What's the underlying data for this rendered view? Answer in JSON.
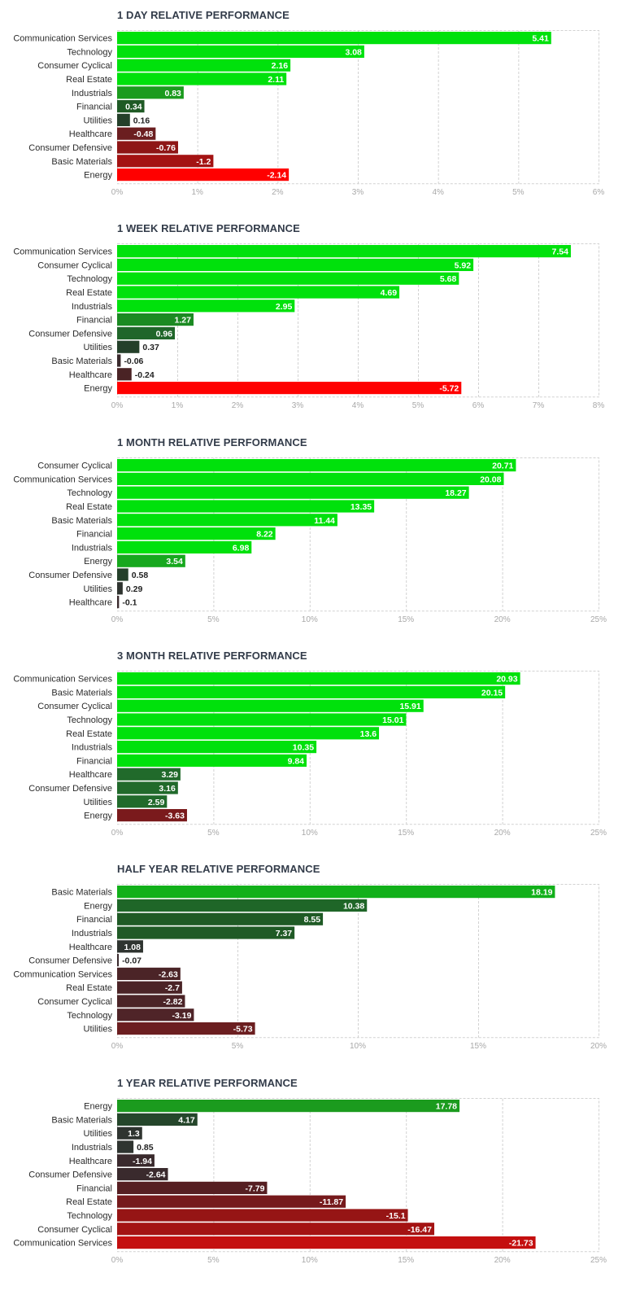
{
  "chart_data": [
    {
      "type": "bar",
      "title": "1 DAY RELATIVE PERFORMANCE",
      "categories": [
        "Communication Services",
        "Technology",
        "Consumer Cyclical",
        "Real Estate",
        "Industrials",
        "Financial",
        "Utilities",
        "Healthcare",
        "Consumer Defensive",
        "Basic Materials",
        "Energy"
      ],
      "values": [
        5.41,
        3.08,
        2.16,
        2.11,
        0.83,
        0.34,
        0.16,
        -0.48,
        -0.76,
        -1.2,
        -2.14
      ],
      "value_labels": [
        "5.41",
        "3.08",
        "2.16",
        "2.11",
        "0.83",
        "0.34",
        "0.16",
        "-0.48",
        "-0.76",
        "-1.2",
        "-2.14"
      ],
      "xlim": [
        0,
        6
      ],
      "xticks": [
        "0%",
        "1%",
        "2%",
        "3%",
        "4%",
        "5%",
        "6%"
      ],
      "grid": true,
      "bar_colors": [
        "#00e10c",
        "#00e10c",
        "#00e10c",
        "#00e10c",
        "#1b9b1e",
        "#1f5a25",
        "#24402a",
        "#6b1e20",
        "#8e1616",
        "#a41313",
        "#ff0000"
      ]
    },
    {
      "type": "bar",
      "title": "1 WEEK RELATIVE PERFORMANCE",
      "categories": [
        "Communication Services",
        "Consumer Cyclical",
        "Technology",
        "Real Estate",
        "Industrials",
        "Financial",
        "Consumer Defensive",
        "Utilities",
        "Basic Materials",
        "Healthcare",
        "Energy"
      ],
      "values": [
        7.54,
        5.92,
        5.68,
        4.69,
        2.95,
        1.27,
        0.96,
        0.37,
        -0.06,
        -0.24,
        -5.72
      ],
      "value_labels": [
        "7.54",
        "5.92",
        "5.68",
        "4.69",
        "2.95",
        "1.27",
        "0.96",
        "0.37",
        "-0.06",
        "-0.24",
        "-5.72"
      ],
      "xlim": [
        0,
        8
      ],
      "xticks": [
        "0%",
        "1%",
        "2%",
        "3%",
        "4%",
        "5%",
        "6%",
        "7%",
        "8%"
      ],
      "grid": true,
      "bar_colors": [
        "#00e10c",
        "#00e10c",
        "#00e10c",
        "#00e10c",
        "#00e10c",
        "#1b8a22",
        "#20662a",
        "#24402a",
        "#3a2a2d",
        "#4a2325",
        "#ff0000"
      ]
    },
    {
      "type": "bar",
      "title": "1 MONTH RELATIVE PERFORMANCE",
      "categories": [
        "Consumer Cyclical",
        "Communication Services",
        "Technology",
        "Real Estate",
        "Basic Materials",
        "Financial",
        "Industrials",
        "Energy",
        "Consumer Defensive",
        "Utilities",
        "Healthcare"
      ],
      "values": [
        20.71,
        20.08,
        18.27,
        13.35,
        11.44,
        8.22,
        6.98,
        3.54,
        0.58,
        0.29,
        -0.1
      ],
      "value_labels": [
        "20.71",
        "20.08",
        "18.27",
        "13.35",
        "11.44",
        "8.22",
        "6.98",
        "3.54",
        "0.58",
        "0.29",
        "-0.1"
      ],
      "xlim": [
        0,
        25
      ],
      "xticks": [
        "0%",
        "5%",
        "10%",
        "15%",
        "20%",
        "25%"
      ],
      "grid": true,
      "bar_colors": [
        "#00e10c",
        "#00e10c",
        "#00e10c",
        "#00e10c",
        "#00e10c",
        "#00e10c",
        "#00e10c",
        "#17a81e",
        "#24402a",
        "#2f3430",
        "#3a2a2d"
      ]
    },
    {
      "type": "bar",
      "title": "3 MONTH RELATIVE PERFORMANCE",
      "categories": [
        "Communication Services",
        "Basic Materials",
        "Consumer Cyclical",
        "Technology",
        "Real Estate",
        "Industrials",
        "Financial",
        "Healthcare",
        "Consumer Defensive",
        "Utilities",
        "Energy"
      ],
      "values": [
        20.93,
        20.15,
        15.91,
        15.01,
        13.6,
        10.35,
        9.84,
        3.29,
        3.16,
        2.59,
        -3.63
      ],
      "value_labels": [
        "20.93",
        "20.15",
        "15.91",
        "15.01",
        "13.6",
        "10.35",
        "9.84",
        "3.29",
        "3.16",
        "2.59",
        "-3.63"
      ],
      "xlim": [
        0,
        25
      ],
      "xticks": [
        "0%",
        "5%",
        "10%",
        "15%",
        "20%",
        "25%"
      ],
      "grid": true,
      "bar_colors": [
        "#00e10c",
        "#00e10c",
        "#00e10c",
        "#00e10c",
        "#00e10c",
        "#00e10c",
        "#00e10c",
        "#216a2b",
        "#216a2b",
        "#216a2b",
        "#7a1a1c"
      ]
    },
    {
      "type": "bar",
      "title": "HALF YEAR RELATIVE PERFORMANCE",
      "categories": [
        "Basic Materials",
        "Energy",
        "Financial",
        "Industrials",
        "Healthcare",
        "Consumer Defensive",
        "Communication Services",
        "Real Estate",
        "Consumer Cyclical",
        "Technology",
        "Utilities"
      ],
      "values": [
        18.19,
        10.38,
        8.55,
        7.37,
        1.08,
        -0.07,
        -2.63,
        -2.7,
        -2.82,
        -3.19,
        -5.73
      ],
      "value_labels": [
        "18.19",
        "10.38",
        "8.55",
        "7.37",
        "1.08",
        "-0.07",
        "-2.63",
        "-2.7",
        "-2.82",
        "-3.19",
        "-5.73"
      ],
      "xlim": [
        0,
        20
      ],
      "xticks": [
        "0%",
        "5%",
        "10%",
        "15%",
        "20%"
      ],
      "grid": true,
      "bar_colors": [
        "#12b01a",
        "#1f6628",
        "#1f5a25",
        "#205a26",
        "#2f3430",
        "#3a2a2d",
        "#4b2427",
        "#4b2427",
        "#4b2427",
        "#4f2428",
        "#6b1e20"
      ]
    },
    {
      "type": "bar",
      "title": "1 YEAR RELATIVE PERFORMANCE",
      "categories": [
        "Energy",
        "Basic Materials",
        "Utilities",
        "Industrials",
        "Healthcare",
        "Consumer Defensive",
        "Financial",
        "Real Estate",
        "Technology",
        "Consumer Cyclical",
        "Communication Services"
      ],
      "values": [
        17.78,
        4.17,
        1.3,
        0.85,
        -1.94,
        -2.64,
        -7.79,
        -11.87,
        -15.1,
        -16.47,
        -21.73
      ],
      "value_labels": [
        "17.78",
        "4.17",
        "1.3",
        "0.85",
        "-1.94",
        "-2.64",
        "-7.79",
        "-11.87",
        "-15.1",
        "-16.47",
        "-21.73"
      ],
      "xlim": [
        0,
        25
      ],
      "xticks": [
        "0%",
        "5%",
        "10%",
        "15%",
        "20%",
        "25%"
      ],
      "grid": true,
      "bar_colors": [
        "#1b9b1e",
        "#25462b",
        "#2f3430",
        "#2f3430",
        "#3a2a2d",
        "#3a2a2d",
        "#561f22",
        "#761a1c",
        "#961515",
        "#a41313",
        "#c40f0f"
      ]
    }
  ]
}
